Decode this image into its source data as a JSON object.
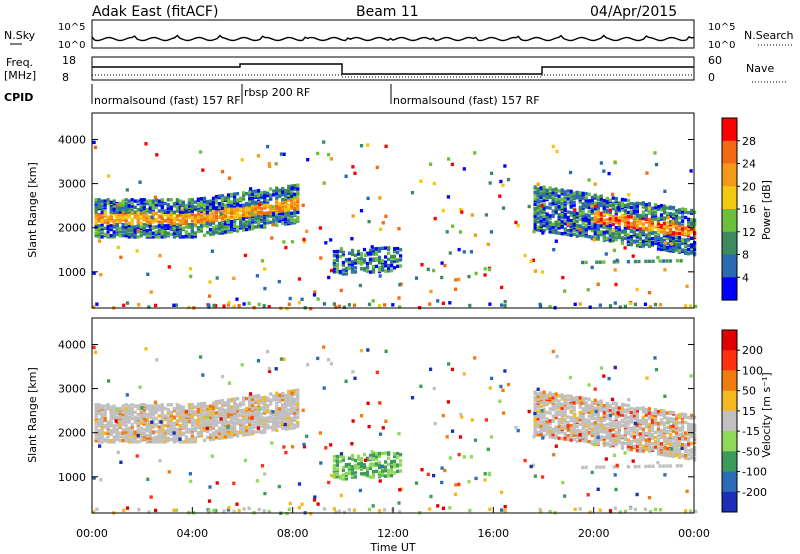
{
  "header": {
    "station": "Adak East (fitACF)",
    "beam": "Beam 11",
    "date": "04/Apr/2015"
  },
  "top_panels": {
    "nsky_label": "N.Sky",
    "nsky_ticks": [
      "10^5",
      "10^0"
    ],
    "nsearch_label": "N.Search",
    "freq_label": "Freq.",
    "freq_unit": "[MHz]",
    "freq_ticks": [
      "18",
      "8"
    ],
    "nave_label": "Nave",
    "nave_ticks": [
      "60",
      "0"
    ],
    "cpid_label": "CPID",
    "cpid_segments": [
      {
        "label": "normalsound (fast) 157 RF",
        "start": 0.0
      },
      {
        "label": "rbsp 200 RF",
        "start": 6.0
      },
      {
        "label": "normalsound (fast) 157 RF",
        "start": 12.0
      }
    ]
  },
  "chart_data": [
    {
      "type": "heatmap",
      "name": "power",
      "ylabel": "Slant Range [km]",
      "xlabel": "",
      "xlim": [
        0,
        24
      ],
      "ylim": [
        180,
        4600
      ],
      "yticks": [
        "1000",
        "2000",
        "3000",
        "4000"
      ],
      "colorbar": {
        "label": "Power [dB]",
        "ticks": [
          "4",
          "8",
          "12",
          "16",
          "20",
          "24",
          "28"
        ],
        "range": [
          0,
          32
        ],
        "colors": [
          "#0000ff",
          "#2a6ab3",
          "#3e8a5e",
          "#6bbf3c",
          "#f3c810",
          "#f59a18",
          "#f26a14",
          "#ff0000"
        ]
      }
    },
    {
      "type": "heatmap",
      "name": "velocity",
      "ylabel": "Slant Range [km]",
      "xlabel": "Time UT",
      "xlim": [
        0,
        24
      ],
      "ylim": [
        180,
        4600
      ],
      "yticks": [
        "1000",
        "2000",
        "3000",
        "4000"
      ],
      "xticks": [
        "00:00",
        "04:00",
        "08:00",
        "12:00",
        "16:00",
        "20:00",
        "00:00"
      ],
      "colorbar": {
        "label": "Velocity [m s⁻¹]",
        "ticks": [
          "200",
          "100",
          "50",
          "15",
          "-15",
          "-50",
          "-100",
          "-200"
        ],
        "colors": [
          "#1a2fb5",
          "#2c6bb5",
          "#3c9b5b",
          "#8ed85a",
          "#c0c0c0",
          "#f5b820",
          "#f07c10",
          "#ff3010",
          "#e00000"
        ]
      }
    }
  ]
}
